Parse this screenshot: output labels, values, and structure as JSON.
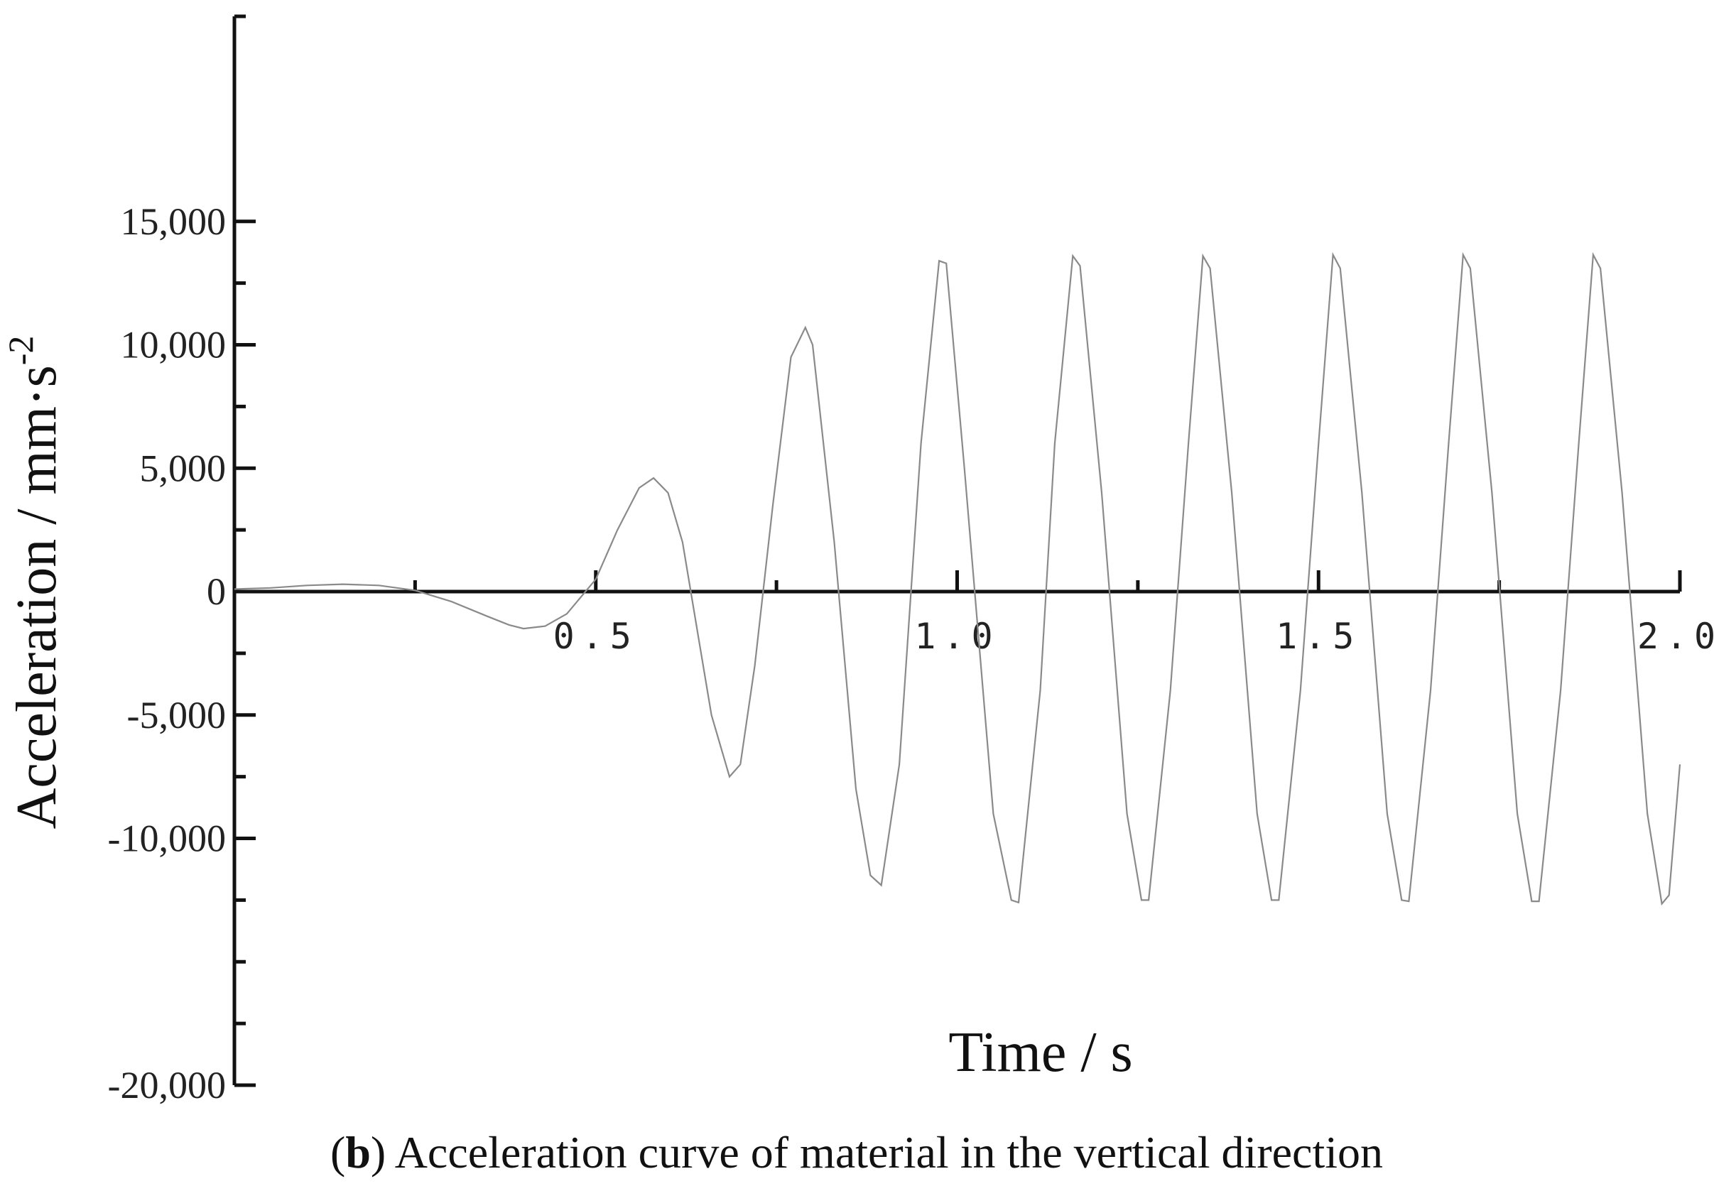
{
  "chart_data": {
    "type": "line",
    "xlabel": "Time / s",
    "ylabel": "Acceleration / mm·s",
    "ylabel_superscript": "-2",
    "caption_prefix_open": "(",
    "caption_letter": "b",
    "caption_rest": ") Acceleration curve of material in the vertical direction",
    "xlim": [
      0,
      2.0
    ],
    "ylim": [
      -20000,
      17500
    ],
    "x_ticks": [
      0.5,
      1.0,
      1.5,
      2.0
    ],
    "x_tick_labels": [
      "0.5",
      "1.0",
      "1.5",
      "2.0"
    ],
    "x_minor_ticks": [
      0.25,
      0.75,
      1.25,
      1.75
    ],
    "y_ticks": [
      15000,
      10000,
      5000,
      0,
      -5000,
      -10000,
      -20000
    ],
    "y_tick_labels": [
      "15,000",
      "10,000",
      "5,000",
      "0",
      "-5,000",
      "-10,000",
      "-20,000"
    ],
    "y_minor_ticks": [
      12500,
      7500,
      2500,
      -2500,
      -7500,
      -12500,
      -15000,
      -17500
    ],
    "grid": false,
    "series": [
      {
        "color": "#8a8a8a",
        "points": [
          [
            0.0,
            100
          ],
          [
            0.05,
            150
          ],
          [
            0.1,
            250
          ],
          [
            0.15,
            300
          ],
          [
            0.2,
            250
          ],
          [
            0.25,
            50
          ],
          [
            0.3,
            -400
          ],
          [
            0.35,
            -1000
          ],
          [
            0.38,
            -1350
          ],
          [
            0.4,
            -1500
          ],
          [
            0.43,
            -1400
          ],
          [
            0.46,
            -900
          ],
          [
            0.5,
            500
          ],
          [
            0.53,
            2500
          ],
          [
            0.56,
            4200
          ],
          [
            0.58,
            4600
          ],
          [
            0.6,
            4000
          ],
          [
            0.62,
            2000
          ],
          [
            0.64,
            -1500
          ],
          [
            0.66,
            -5000
          ],
          [
            0.685,
            -7500
          ],
          [
            0.7,
            -7000
          ],
          [
            0.72,
            -3000
          ],
          [
            0.745,
            3500
          ],
          [
            0.77,
            9500
          ],
          [
            0.79,
            10700
          ],
          [
            0.8,
            10000
          ],
          [
            0.83,
            2000
          ],
          [
            0.86,
            -8000
          ],
          [
            0.88,
            -11500
          ],
          [
            0.895,
            -11900
          ],
          [
            0.92,
            -7000
          ],
          [
            0.95,
            6000
          ],
          [
            0.975,
            13400
          ],
          [
            0.985,
            13300
          ],
          [
            1.01,
            5000
          ],
          [
            1.05,
            -9000
          ],
          [
            1.075,
            -12500
          ],
          [
            1.085,
            -12600
          ],
          [
            1.115,
            -4000
          ],
          [
            1.135,
            6000
          ],
          [
            1.16,
            13600
          ],
          [
            1.17,
            13200
          ],
          [
            1.2,
            4000
          ],
          [
            1.235,
            -9000
          ],
          [
            1.255,
            -12500
          ],
          [
            1.265,
            -12500
          ],
          [
            1.295,
            -4000
          ],
          [
            1.32,
            6000
          ],
          [
            1.34,
            13600
          ],
          [
            1.35,
            13100
          ],
          [
            1.38,
            4000
          ],
          [
            1.415,
            -9000
          ],
          [
            1.435,
            -12500
          ],
          [
            1.445,
            -12500
          ],
          [
            1.475,
            -4000
          ],
          [
            1.5,
            6000
          ],
          [
            1.52,
            13650
          ],
          [
            1.53,
            13100
          ],
          [
            1.56,
            4000
          ],
          [
            1.595,
            -9000
          ],
          [
            1.615,
            -12500
          ],
          [
            1.625,
            -12550
          ],
          [
            1.655,
            -4000
          ],
          [
            1.68,
            6000
          ],
          [
            1.7,
            13650
          ],
          [
            1.71,
            13100
          ],
          [
            1.74,
            4000
          ],
          [
            1.775,
            -9000
          ],
          [
            1.795,
            -12550
          ],
          [
            1.805,
            -12550
          ],
          [
            1.835,
            -4000
          ],
          [
            1.86,
            6000
          ],
          [
            1.88,
            13650
          ],
          [
            1.89,
            13100
          ],
          [
            1.92,
            4000
          ],
          [
            1.955,
            -9000
          ],
          [
            1.975,
            -12650
          ],
          [
            1.985,
            -12300
          ],
          [
            2.0,
            -7000
          ]
        ]
      }
    ]
  }
}
